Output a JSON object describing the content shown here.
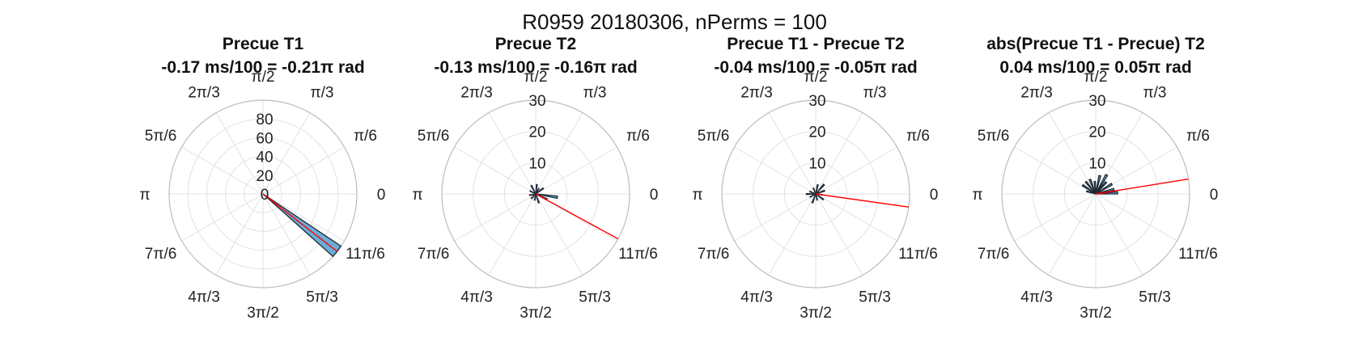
{
  "figure_title": "R0959 20180306, nPerms = 100",
  "colors": {
    "bar_fill": "#6aaed6",
    "bar_edge": "#1f2a36",
    "mean_line": "#ff0000",
    "grid": "#e2e2e2",
    "outer_ring": "#bdbdbd"
  },
  "angle_tick_labels": [
    "0",
    "π/6",
    "π/3",
    "π/2",
    "2π/3",
    "5π/6",
    "π",
    "7π/6",
    "4π/3",
    "3π/2",
    "5π/3",
    "11π/6"
  ],
  "chart_data": [
    {
      "type": "polar_histogram",
      "title": "Precue T1",
      "subtitle": "-0.17 ms/100 = -0.21π rad",
      "rlim": [
        0,
        100
      ],
      "rticks": [
        "0",
        "20",
        "40",
        "60",
        "80"
      ],
      "rtick_values": [
        0,
        20,
        40,
        60,
        80
      ],
      "mean_angle_rad": -0.66,
      "mean_length": 100,
      "bars": [
        {
          "start_rad": -0.73,
          "end_rad": -0.59,
          "count": 100
        }
      ]
    },
    {
      "type": "polar_histogram",
      "title": "Precue T2",
      "subtitle": "-0.13 ms/100 = -0.16π rad",
      "rlim": [
        0,
        30
      ],
      "rticks": [
        "10",
        "20",
        "30"
      ],
      "rtick_values": [
        10,
        20,
        30
      ],
      "mean_angle_rad": -0.5,
      "mean_length": 30,
      "bars": [
        {
          "start_rad": -0.2,
          "end_rad": -0.1,
          "count": 7
        },
        {
          "start_rad": -0.5,
          "end_rad": -0.4,
          "count": 4
        },
        {
          "start_rad": 0.6,
          "end_rad": 0.7,
          "count": 3
        },
        {
          "start_rad": 1.0,
          "end_rad": 1.1,
          "count": 2
        },
        {
          "start_rad": 1.4,
          "end_rad": 1.5,
          "count": 3
        },
        {
          "start_rad": 2.0,
          "end_rad": 2.1,
          "count": 3
        },
        {
          "start_rad": 2.6,
          "end_rad": 2.7,
          "count": 2
        },
        {
          "start_rad": 3.3,
          "end_rad": 3.4,
          "count": 2
        },
        {
          "start_rad": 3.9,
          "end_rad": 4.0,
          "count": 2
        },
        {
          "start_rad": 4.5,
          "end_rad": 4.6,
          "count": 2
        },
        {
          "start_rad": 5.0,
          "end_rad": 5.1,
          "count": 3
        }
      ]
    },
    {
      "type": "polar_histogram",
      "title": "Precue T1 - Precue T2",
      "subtitle": "-0.04 ms/100 = -0.05π rad",
      "rlim": [
        0,
        30
      ],
      "rticks": [
        "10",
        "20",
        "30"
      ],
      "rtick_values": [
        10,
        20,
        30
      ],
      "mean_angle_rad": -0.14,
      "mean_length": 30,
      "bars": [
        {
          "start_rad": 0.3,
          "end_rad": 0.4,
          "count": 3
        },
        {
          "start_rad": 0.8,
          "end_rad": 0.9,
          "count": 4
        },
        {
          "start_rad": 1.3,
          "end_rad": 1.4,
          "count": 3
        },
        {
          "start_rad": 1.9,
          "end_rad": 2.0,
          "count": 2
        },
        {
          "start_rad": 2.7,
          "end_rad": 2.8,
          "count": 2
        },
        {
          "start_rad": 3.1,
          "end_rad": 3.2,
          "count": 3
        },
        {
          "start_rad": 3.6,
          "end_rad": 3.7,
          "count": 2
        },
        {
          "start_rad": 4.3,
          "end_rad": 4.4,
          "count": 3
        },
        {
          "start_rad": 4.9,
          "end_rad": 5.0,
          "count": 2
        },
        {
          "start_rad": 5.6,
          "end_rad": 5.7,
          "count": 3
        },
        {
          "start_rad": 6.1,
          "end_rad": 6.2,
          "count": 2
        }
      ]
    },
    {
      "type": "polar_histogram",
      "title": "abs(Precue T1 - Precue) T2",
      "subtitle": "0.04 ms/100 = 0.05π rad",
      "rlim": [
        0,
        30
      ],
      "rticks": [
        "10",
        "20",
        "30"
      ],
      "rtick_values": [
        10,
        20,
        30
      ],
      "mean_angle_rad": 0.16,
      "mean_length": 30,
      "bars": [
        {
          "start_rad": 0.0,
          "end_rad": 0.1,
          "count": 7
        },
        {
          "start_rad": 0.2,
          "end_rad": 0.3,
          "count": 6
        },
        {
          "start_rad": 0.5,
          "end_rad": 0.6,
          "count": 6
        },
        {
          "start_rad": 0.8,
          "end_rad": 0.9,
          "count": 5
        },
        {
          "start_rad": 1.0,
          "end_rad": 1.1,
          "count": 7
        },
        {
          "start_rad": 1.3,
          "end_rad": 1.4,
          "count": 6
        },
        {
          "start_rad": 1.6,
          "end_rad": 1.7,
          "count": 4
        },
        {
          "start_rad": 1.9,
          "end_rad": 2.0,
          "count": 5
        },
        {
          "start_rad": 2.2,
          "end_rad": 2.3,
          "count": 5
        },
        {
          "start_rad": 2.5,
          "end_rad": 2.6,
          "count": 5
        },
        {
          "start_rad": 2.8,
          "end_rad": 2.9,
          "count": 3
        }
      ]
    }
  ]
}
